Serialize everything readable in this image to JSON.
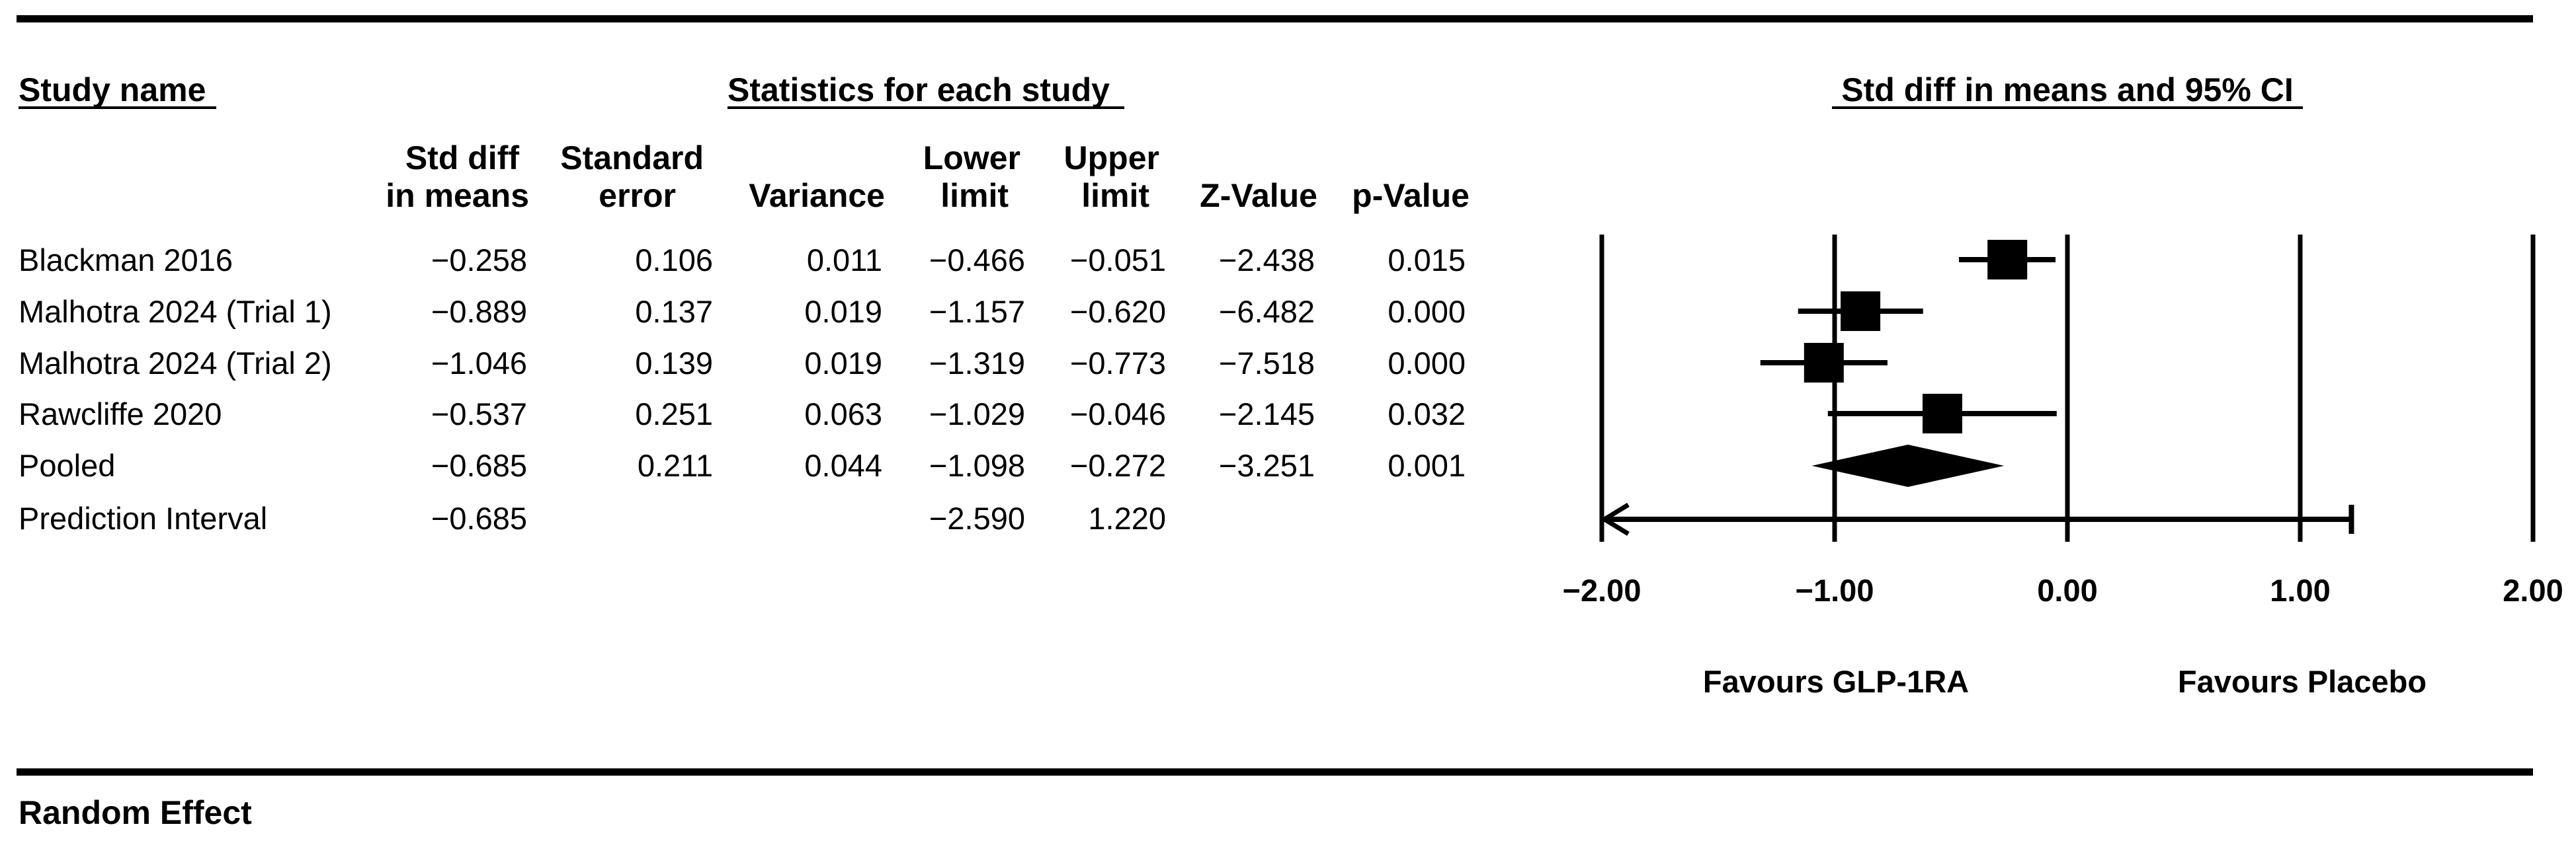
{
  "header": {
    "study_name": "Study name",
    "statistics_title": "Statistics for each study",
    "forest_title": "Std diff in means and 95% CI"
  },
  "columns": [
    {
      "line1": "Std diff",
      "line2": "in means"
    },
    {
      "line1": "Standard",
      "line2": "error"
    },
    {
      "line1": "",
      "line2": "Variance"
    },
    {
      "line1": "Lower",
      "line2": "limit"
    },
    {
      "line1": "Upper",
      "line2": "limit"
    },
    {
      "line1": "",
      "line2": "Z-Value"
    },
    {
      "line1": "",
      "line2": "p-Value"
    }
  ],
  "rows": [
    {
      "name": "Blackman 2016",
      "values": [
        "−0.258",
        "0.106",
        "0.011",
        "−0.466",
        "−0.051",
        "−2.438",
        "0.015"
      ]
    },
    {
      "name": "Malhotra 2024 (Trial 1)",
      "values": [
        "−0.889",
        "0.137",
        "0.019",
        "−1.157",
        "−0.620",
        "−6.482",
        "0.000"
      ]
    },
    {
      "name": "Malhotra 2024 (Trial 2)",
      "values": [
        "−1.046",
        "0.139",
        "0.019",
        "−1.319",
        "−0.773",
        "−7.518",
        "0.000"
      ]
    },
    {
      "name": "Rawcliffe 2020",
      "values": [
        "−0.537",
        "0.251",
        "0.063",
        "−1.029",
        "−0.046",
        "−2.145",
        "0.032"
      ]
    },
    {
      "name": "Pooled",
      "values": [
        "−0.685",
        "0.211",
        "0.044",
        "−1.098",
        "−0.272",
        "−3.251",
        "0.001"
      ]
    },
    {
      "name": "Prediction Interval",
      "values": [
        "−0.685",
        "",
        "",
        "−2.590",
        "1.220",
        "",
        ""
      ]
    }
  ],
  "footer": {
    "favours_left": "Favours GLP-1RA",
    "favours_right": "Favours Placebo",
    "model": "Random Effect"
  },
  "chart_data": {
    "type": "forest",
    "xlim": [
      -2,
      2
    ],
    "ticks": [
      -2,
      -1,
      0,
      1,
      2
    ],
    "tick_labels": [
      "-2.00",
      "-1.00",
      "0.00",
      "1.00",
      "2.00"
    ],
    "studies": [
      {
        "name": "Blackman 2016",
        "estimate": -0.258,
        "lower": -0.466,
        "upper": -0.051,
        "se": 0.106
      },
      {
        "name": "Malhotra 2024 (Trial 1)",
        "estimate": -0.889,
        "lower": -1.157,
        "upper": -0.62,
        "se": 0.137
      },
      {
        "name": "Malhotra 2024 (Trial 2)",
        "estimate": -1.046,
        "lower": -1.319,
        "upper": -0.773,
        "se": 0.139
      },
      {
        "name": "Rawcliffe 2020",
        "estimate": -0.537,
        "lower": -1.029,
        "upper": -0.046,
        "se": 0.251
      }
    ],
    "pooled": {
      "estimate": -0.685,
      "lower": -1.098,
      "upper": -0.272
    },
    "prediction_interval": {
      "estimate": -0.685,
      "lower": -2.59,
      "upper": 1.22
    }
  }
}
